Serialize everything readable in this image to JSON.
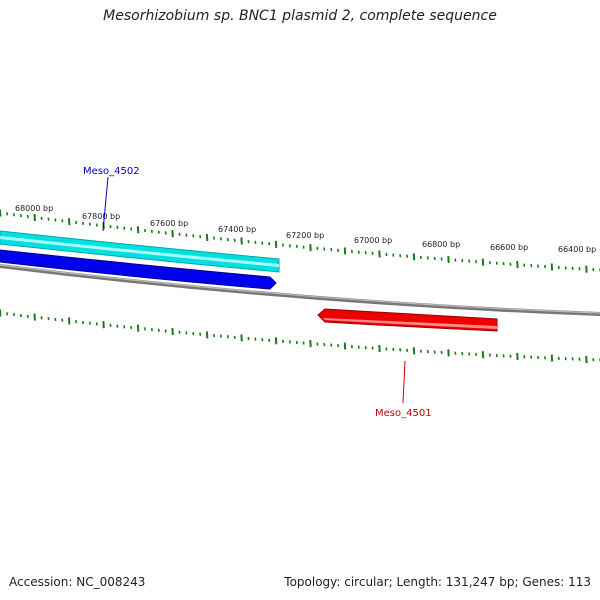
{
  "title": "Mesorhizobium sp. BNC1 plasmid 2, complete sequence",
  "footer": {
    "accession": "Accession: NC_008243",
    "summary": "Topology: circular; Length: 131,247 bp; Genes: 113"
  },
  "scale_labels": [
    "68000 bp",
    "67800 bp",
    "67600 bp",
    "67400 bp",
    "67200 bp",
    "67000 bp",
    "66800 bp",
    "66600 bp",
    "66400 bp"
  ],
  "genes": [
    {
      "name": "Meso_4502",
      "color": "#0000cc",
      "strand": "top"
    },
    {
      "name": "Meso_4501",
      "color": "#cc0000",
      "strand": "bottom"
    }
  ],
  "colors": {
    "backbone": "#888888",
    "tick": "#1a7a1a",
    "gene_top_outer": "#00e5e5",
    "gene_top_inner": "#0000ee",
    "gene_bottom": "#ee0000"
  }
}
